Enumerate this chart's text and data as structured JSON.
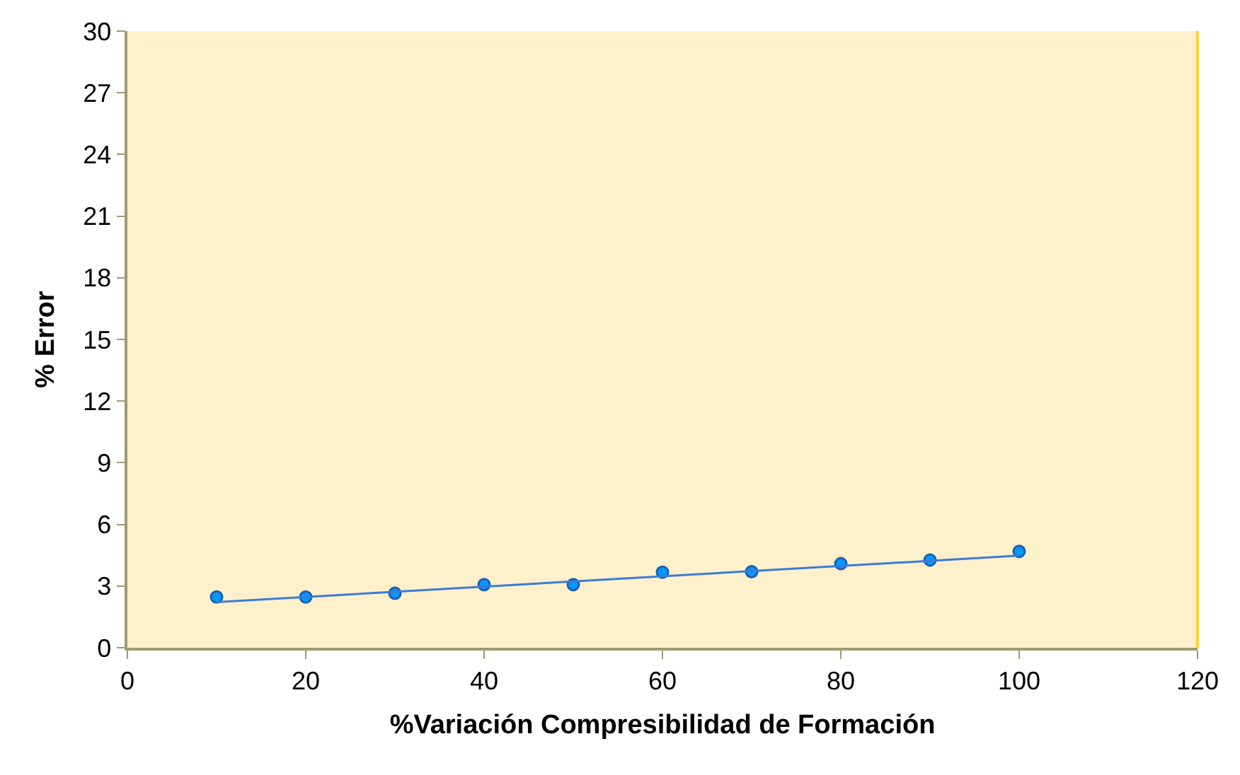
{
  "chart_data": {
    "type": "scatter",
    "xlabel": "%Variación Compresibilidad de Formación",
    "ylabel": "% Error",
    "x": [
      10,
      20,
      30,
      40,
      50,
      60,
      70,
      80,
      90,
      100
    ],
    "series": [
      {
        "color": "#0099ff",
        "marker": "circle",
        "values": [
          2.47,
          2.47,
          2.65,
          3.07,
          3.07,
          3.67,
          3.7,
          4.09,
          4.27,
          4.69
        ]
      },
      {
        "type": "line",
        "color": "#3a7bd5",
        "marker": "none",
        "x": [
          10,
          100
        ],
        "values": [
          2.22,
          4.48
        ]
      }
    ],
    "xlim": [
      0,
      120
    ],
    "xticks": [
      0,
      20,
      40,
      60,
      80,
      100,
      120
    ],
    "ylim": [
      0,
      30
    ],
    "yticks": [
      0,
      3,
      6,
      9,
      12,
      15,
      18,
      21,
      24,
      27,
      30
    ],
    "grid": false
  }
}
